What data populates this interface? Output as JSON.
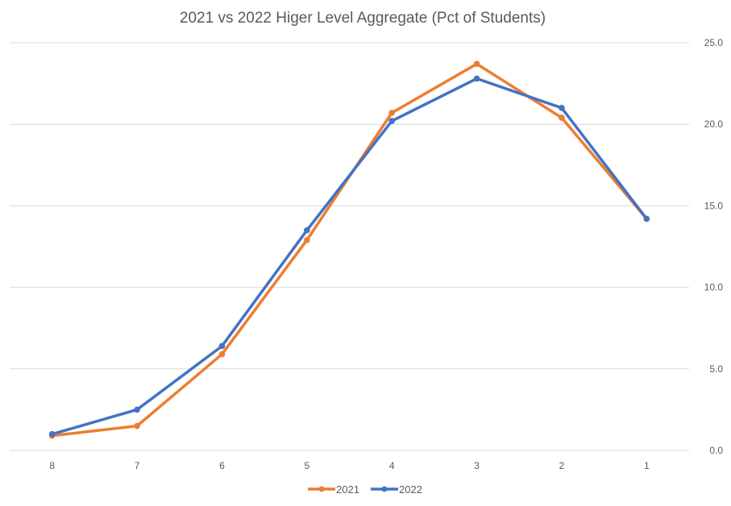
{
  "chart_data": {
    "type": "line",
    "title": "2021 vs 2022 Higer Level Aggregate (Pct of Students)",
    "categories": [
      "8",
      "7",
      "6",
      "5",
      "4",
      "3",
      "2",
      "1"
    ],
    "series": [
      {
        "name": "2021",
        "color": "#ED7D31",
        "values": [
          0.9,
          1.5,
          5.9,
          12.9,
          20.7,
          23.7,
          20.4,
          14.2
        ]
      },
      {
        "name": "2022",
        "color": "#4472C4",
        "values": [
          1.0,
          2.5,
          6.4,
          13.5,
          20.2,
          22.8,
          21.0,
          14.2
        ]
      }
    ],
    "yticks": [
      "0.0",
      "5.0",
      "10.0",
      "15.0",
      "20.0",
      "25.0"
    ],
    "ylim": [
      0,
      25
    ],
    "y_axis_side": "right",
    "grid": true,
    "legend": "bottom",
    "xlabel": "",
    "ylabel": ""
  }
}
